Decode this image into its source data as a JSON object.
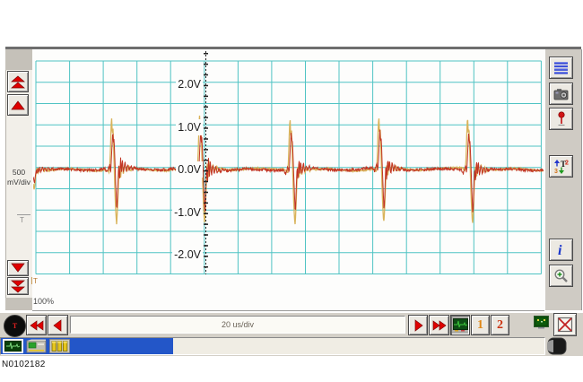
{
  "left_panel": {
    "scale_value": "500",
    "scale_units": "mV/div",
    "trigger_level_marker": "T",
    "buttons": [
      "scale-double-up",
      "scale-up",
      "scale-down",
      "scale-double-down"
    ]
  },
  "plot": {
    "zoom_percent": "100%",
    "trigger_time_marker": "T"
  },
  "right_toolbar": {
    "buttons": [
      {
        "icon": "list-icon"
      },
      {
        "icon": "camera-icon"
      },
      {
        "icon": "pin-icon"
      },
      {
        "icon": "cursor-settings-icon"
      },
      {
        "icon": "info-icon"
      },
      {
        "icon": "zoom-icon"
      }
    ]
  },
  "toolbar": {
    "trigger_button_label": "T",
    "timebase": "20 us/div",
    "channel_1": "1",
    "channel_2": "2",
    "buttons": [
      "rewind",
      "step-back",
      "step-forward",
      "fast-forward",
      "scope-display",
      "channel-1",
      "channel-2",
      "display-status",
      "close"
    ]
  },
  "status_bar": {
    "progress_color": "#2356c8",
    "icons": [
      "waveform-monitor-icon",
      "device-icon",
      "battery-columns-icon",
      "contrast-icon"
    ]
  },
  "footer": {
    "part_number": "N0102182"
  },
  "chart_data": {
    "type": "line",
    "title": "",
    "x_axis": {
      "label": "20 us/div",
      "div_us": 20,
      "span_us": 304,
      "gridlines_every_us": 20
    },
    "y_axis": {
      "label": "500 mV/div",
      "div_mV": 500,
      "tick_labels": [
        "2.0V",
        "1.0V",
        "0.0V",
        "-1.0V",
        "-2.0V"
      ],
      "tick_values_V": [
        2,
        1,
        0,
        -1,
        -2
      ],
      "visible_range_V": [
        -2.5,
        2.55
      ],
      "gridlines_every_V": 0.5
    },
    "trigger": {
      "time_us": 103,
      "marker": "T"
    },
    "grid_color": "#4fc3c3",
    "baseline_V": 0.0,
    "noise_amplitude_V": 0.035,
    "series": [
      {
        "name": "reference-trace",
        "color": "#d9b35a",
        "spike_times_us": [
          1.5,
          50.5,
          102.7,
          156.4,
          209.1,
          261.8
        ],
        "spike_scales": [
          0.35,
          1,
          1,
          1,
          1,
          1
        ],
        "peak_V": 1.25,
        "trough_V": -1.3,
        "profile_us_V": [
          [
            -11.7,
            0
          ],
          [
            -6.4,
            0.02
          ],
          [
            -4.8,
            -0.05
          ],
          [
            -4.3,
            0.25
          ],
          [
            -3.7,
            1.05
          ],
          [
            -3.4,
            1.25
          ],
          [
            -3.0,
            0.8
          ],
          [
            -2.6,
            1.0
          ],
          [
            -2.1,
            0.4
          ],
          [
            -1.6,
            -0.3
          ],
          [
            -1.1,
            -0.85
          ],
          [
            -0.5,
            -1.3
          ],
          [
            0,
            -1.0
          ],
          [
            0.5,
            -0.45
          ],
          [
            1.1,
            0.12
          ],
          [
            1.9,
            -0.2
          ],
          [
            2.7,
            0.18
          ],
          [
            3.5,
            -0.1
          ],
          [
            4.5,
            0.12
          ],
          [
            5.6,
            -0.06
          ],
          [
            6.7,
            0.07
          ],
          [
            8.0,
            -0.04
          ],
          [
            9.6,
            0.03
          ],
          [
            11.7,
            0
          ]
        ]
      },
      {
        "name": "signal-trace",
        "color": "#c23524",
        "spike_times_us": [
          1.5,
          50.5,
          102.7,
          156.4,
          209.1,
          261.8
        ],
        "spike_scales": [
          0.3,
          1,
          1,
          1,
          1,
          1
        ],
        "peak_V": 0.95,
        "trough_V": -1.07,
        "profile_us_V": [
          [
            -11.7,
            0
          ],
          [
            -7.5,
            0.02
          ],
          [
            -5.9,
            -0.08
          ],
          [
            -4.5,
            0.12
          ],
          [
            -4.0,
            -0.1
          ],
          [
            -3.5,
            0.3
          ],
          [
            -2.9,
            0.78
          ],
          [
            -2.7,
            0.95
          ],
          [
            -2.4,
            0.6
          ],
          [
            -2.1,
            0.75
          ],
          [
            -1.6,
            0.35
          ],
          [
            -1.1,
            -0.25
          ],
          [
            -0.5,
            -0.8
          ],
          [
            -0.3,
            -1.07
          ],
          [
            0,
            -0.75
          ],
          [
            0.4,
            -0.3
          ],
          [
            0.8,
            0.12
          ],
          [
            1.3,
            -0.32
          ],
          [
            1.9,
            0.28
          ],
          [
            2.4,
            -0.16
          ],
          [
            2.9,
            0.22
          ],
          [
            3.7,
            -0.12
          ],
          [
            4.5,
            0.16
          ],
          [
            5.3,
            -0.07
          ],
          [
            6.1,
            0.1
          ],
          [
            6.9,
            -0.04
          ],
          [
            8.0,
            0.06
          ],
          [
            9.1,
            -0.03
          ],
          [
            10.1,
            0.03
          ],
          [
            11.7,
            0
          ]
        ]
      }
    ]
  }
}
